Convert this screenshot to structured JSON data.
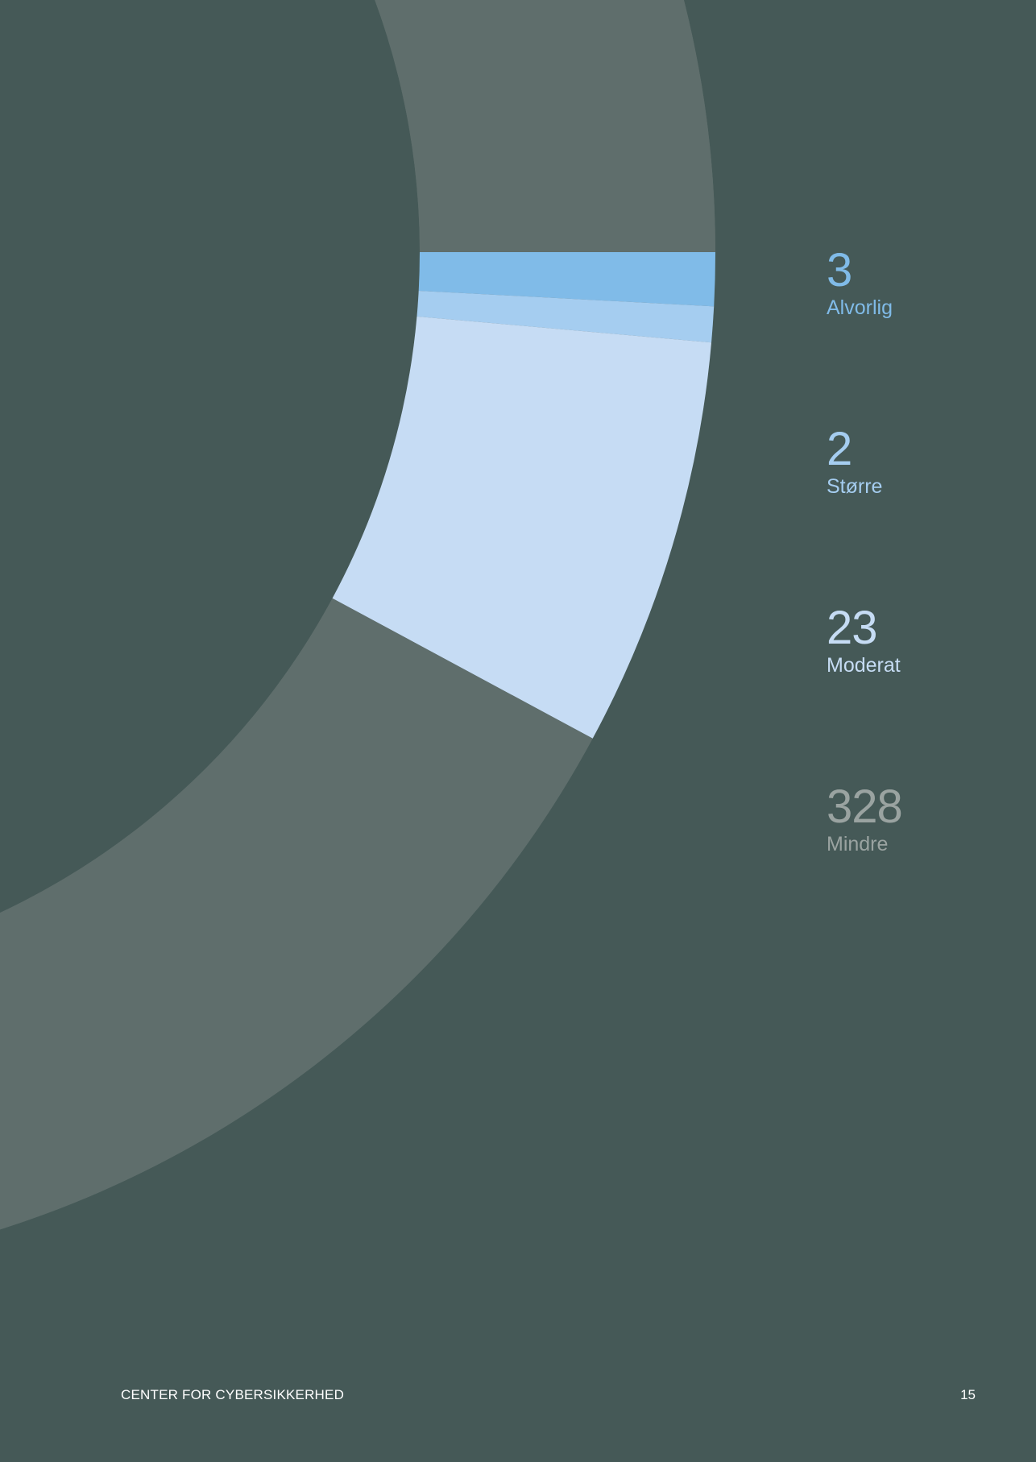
{
  "chart_data": {
    "type": "pie",
    "title": "",
    "categories": [
      "Alvorlig",
      "Større",
      "Moderat",
      "Mindre"
    ],
    "values": [
      3,
      2,
      23,
      328
    ],
    "colors": [
      "#80bbe8",
      "#a5cdf0",
      "#c6dcf4",
      "#5f6e6c"
    ],
    "legend_placement": "right"
  },
  "legend": [
    {
      "value": "3",
      "label": "Alvorlig",
      "color": "#80bbe8"
    },
    {
      "value": "2",
      "label": "Større",
      "color": "#a5cdf0"
    },
    {
      "value": "23",
      "label": "Moderat",
      "color": "#c6dcf4"
    },
    {
      "value": "328",
      "label": "Mindre",
      "color": "#9aa3a1"
    }
  ],
  "footer": {
    "organization": "CENTER FOR CYBERSIKKERHED",
    "page_number": "15"
  },
  "colors": {
    "background": "#455957",
    "ring_track": "#5f6e6c",
    "footer_text": "#ffffff"
  }
}
